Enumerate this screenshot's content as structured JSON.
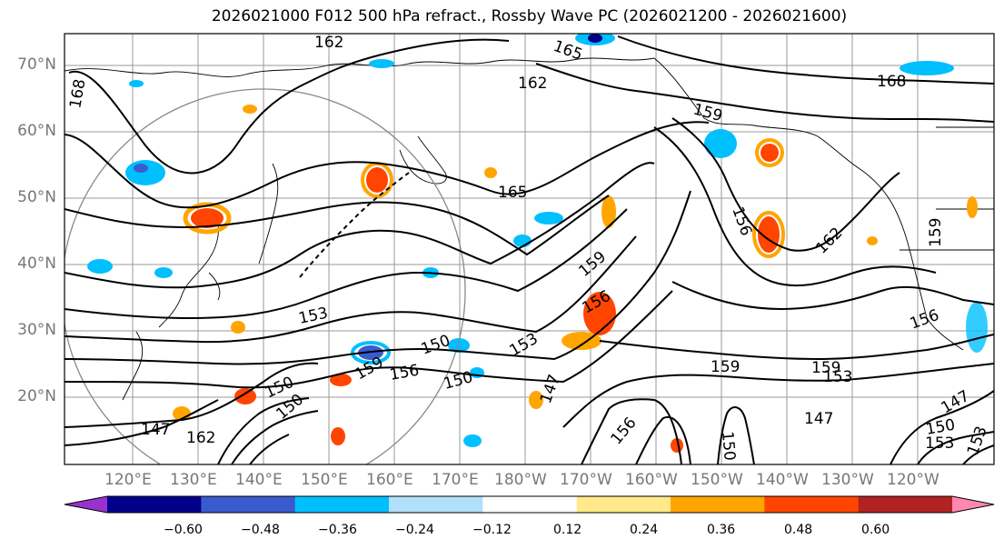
{
  "title": "2026021000 F012 500 hPa refract., Rossby Wave PC (2026021200 - 2026021600)",
  "lat_labels": [
    "70°N",
    "60°N",
    "50°N",
    "40°N",
    "30°N",
    "20°N"
  ],
  "lon_labels": [
    "120°E",
    "130°E",
    "140°E",
    "150°E",
    "160°E",
    "170°E",
    "180°W",
    "170°W",
    "160°W",
    "150°W",
    "140°W",
    "130°W",
    "120°W"
  ],
  "contour_labels": [
    "162",
    "165",
    "168",
    "162",
    "159",
    "156",
    "165",
    "162",
    "159",
    "168",
    "159",
    "153",
    "159",
    "156",
    "150",
    "153",
    "156",
    "150",
    "150",
    "159",
    "159",
    "147",
    "153",
    "147",
    "162",
    "150",
    "156",
    "150",
    "153",
    "147",
    "156",
    "153",
    "147",
    "150"
  ],
  "colorbar": {
    "colors": [
      "#9932cc",
      "#00008b",
      "#3a5bcf",
      "#00bfff",
      "#b0e0fa",
      "#ffffff",
      "#ffe98a",
      "#ffa500",
      "#ff4500",
      "#b22222",
      "#ff88b0"
    ],
    "ticks": [
      "−0.60",
      "−0.48",
      "−0.36",
      "−0.24",
      "−0.12",
      "0.12",
      "0.24",
      "0.36",
      "0.48",
      "0.60"
    ]
  }
}
